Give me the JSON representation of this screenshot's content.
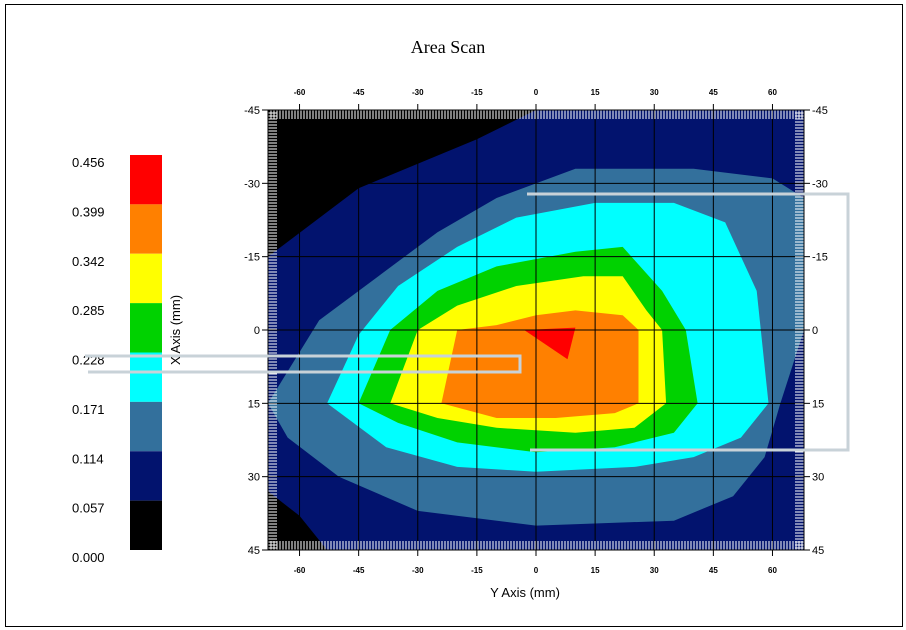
{
  "chart_data": {
    "type": "heatmap",
    "title": "Area Scan",
    "xlabel": "Y Axis (mm)",
    "ylabel": "X Axis (mm)",
    "x_ticks": [
      "-60",
      "-45",
      "-30",
      "-15",
      "0",
      "15",
      "30",
      "45",
      "60"
    ],
    "x_tick_values": [
      -60,
      -45,
      -30,
      -15,
      0,
      15,
      30,
      45,
      60
    ],
    "y_ticks": [
      "-45",
      "-30",
      "-15",
      "0",
      "15",
      "30",
      "45"
    ],
    "y_tick_values": [
      -45,
      -30,
      -15,
      0,
      15,
      30,
      45
    ],
    "xlim": [
      -68,
      68
    ],
    "ylim": [
      -45,
      45
    ],
    "grid": true,
    "legend_position": "left",
    "colorbar": {
      "ticks": [
        "0.456",
        "0.399",
        "0.342",
        "0.285",
        "0.228",
        "0.171",
        "0.114",
        "0.057",
        "0.000"
      ],
      "bands": [
        {
          "min": 0.399,
          "max": 0.456,
          "color": "#ff0000"
        },
        {
          "min": 0.342,
          "max": 0.399,
          "color": "#ff8000"
        },
        {
          "min": 0.285,
          "max": 0.342,
          "color": "#ffff00"
        },
        {
          "min": 0.228,
          "max": 0.285,
          "color": "#00d200"
        },
        {
          "min": 0.171,
          "max": 0.228,
          "color": "#00ffff"
        },
        {
          "min": 0.114,
          "max": 0.171,
          "color": "#33709c"
        },
        {
          "min": 0.057,
          "max": 0.114,
          "color": "#02136e"
        },
        {
          "min": 0.0,
          "max": 0.057,
          "color": "#000000"
        }
      ]
    },
    "contours": [
      {
        "level": "0.057-0.114",
        "color": "#02136e",
        "points": [
          [
            -68,
            -45
          ],
          [
            68,
            -45
          ],
          [
            68,
            45
          ],
          [
            -68,
            45
          ]
        ]
      },
      {
        "level": "0.000-0.057",
        "color": "#000000",
        "points": [
          [
            -68,
            -45
          ],
          [
            0,
            -45
          ],
          [
            -15,
            -39
          ],
          [
            -45,
            -29
          ],
          [
            -68,
            -15
          ]
        ]
      },
      {
        "level": "0.000-0.057",
        "color": "#000000",
        "points": [
          [
            -68,
            33
          ],
          [
            -60,
            38
          ],
          [
            -53,
            45
          ],
          [
            -68,
            45
          ]
        ]
      },
      {
        "level": "0.114-0.171",
        "color": "#33709c",
        "points": [
          [
            -68,
            15
          ],
          [
            -55,
            -2
          ],
          [
            -40,
            -11
          ],
          [
            -25,
            -20
          ],
          [
            -10,
            -27
          ],
          [
            10,
            -33
          ],
          [
            40,
            -33
          ],
          [
            60,
            -31
          ],
          [
            68,
            -27
          ],
          [
            68,
            0
          ],
          [
            62,
            15
          ],
          [
            58,
            26
          ],
          [
            50,
            34
          ],
          [
            35,
            39
          ],
          [
            0,
            40
          ],
          [
            -30,
            37
          ],
          [
            -50,
            30
          ],
          [
            -63,
            22
          ]
        ]
      },
      {
        "level": "0.171-0.228",
        "color": "#00ffff",
        "points": [
          [
            -53,
            15
          ],
          [
            -45,
            1
          ],
          [
            -35,
            -9
          ],
          [
            -20,
            -17
          ],
          [
            -5,
            -23
          ],
          [
            15,
            -26
          ],
          [
            35,
            -26
          ],
          [
            48,
            -22
          ],
          [
            56,
            -8
          ],
          [
            59,
            15
          ],
          [
            52,
            22
          ],
          [
            40,
            26
          ],
          [
            25,
            28
          ],
          [
            0,
            29
          ],
          [
            -20,
            28
          ],
          [
            -38,
            24
          ]
        ]
      },
      {
        "level": "0.228-0.285",
        "color": "#00d200",
        "points": [
          [
            -45,
            15
          ],
          [
            -37,
            0
          ],
          [
            -25,
            -8
          ],
          [
            -10,
            -13
          ],
          [
            10,
            -16
          ],
          [
            22,
            -17
          ],
          [
            32,
            -8
          ],
          [
            38,
            0
          ],
          [
            41,
            15
          ],
          [
            35,
            21
          ],
          [
            20,
            24
          ],
          [
            0,
            25
          ],
          [
            -20,
            23
          ],
          [
            -35,
            19
          ]
        ]
      },
      {
        "level": "0.285-0.342",
        "color": "#ffff00",
        "points": [
          [
            -37,
            15
          ],
          [
            -30,
            0
          ],
          [
            -20,
            -5
          ],
          [
            -5,
            -9
          ],
          [
            12,
            -11
          ],
          [
            22,
            -11
          ],
          [
            28,
            -4
          ],
          [
            32,
            0
          ],
          [
            33,
            15
          ],
          [
            25,
            20
          ],
          [
            10,
            21
          ],
          [
            -10,
            20
          ],
          [
            -25,
            18
          ]
        ]
      },
      {
        "level": "0.342-0.399",
        "color": "#ff8000",
        "points": [
          [
            -24,
            15
          ],
          [
            -20,
            0
          ],
          [
            -10,
            -1
          ],
          [
            0,
            -3
          ],
          [
            10,
            -4
          ],
          [
            22,
            -3
          ],
          [
            26,
            0
          ],
          [
            26,
            15
          ],
          [
            20,
            17
          ],
          [
            5,
            18
          ],
          [
            -10,
            18
          ]
        ]
      },
      {
        "level": "0.399-0.456",
        "color": "#ff0000",
        "points": [
          [
            -3,
            0
          ],
          [
            10,
            -0.5
          ],
          [
            8,
            6
          ]
        ]
      }
    ]
  }
}
